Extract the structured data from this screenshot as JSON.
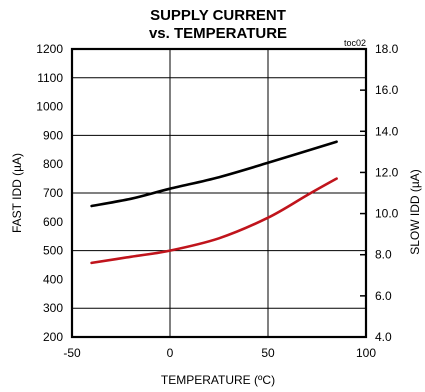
{
  "chart_data": {
    "type": "line",
    "title": "SUPPLY CURRENT",
    "subtitle": "vs. TEMPERATURE",
    "tag": "toc02",
    "xlabel": "TEMPERATURE (ºC)",
    "ylabel": "FAST IDD (µA)",
    "y2label": "SLOW IDD (µA)",
    "xlim": [
      -50,
      100
    ],
    "ylim": [
      200,
      1200
    ],
    "y2lim": [
      4.0,
      18.0
    ],
    "x_ticks": [
      "-50",
      "0",
      "50",
      "100"
    ],
    "y_ticks": [
      "200",
      "300",
      "400",
      "500",
      "600",
      "700",
      "800",
      "900",
      "1000",
      "1100",
      "1200"
    ],
    "y2_ticks": [
      "4.0",
      "6.0",
      "8.0",
      "10.0",
      "12.0",
      "14.0",
      "16.0",
      "18.0"
    ],
    "grid": true,
    "series": [
      {
        "axis": "left",
        "color": "#000000",
        "x": [
          -40,
          -20,
          0,
          25,
          50,
          85
        ],
        "y": [
          655,
          680,
          715,
          755,
          805,
          878
        ]
      },
      {
        "axis": "right",
        "color": "#c0141c",
        "x": [
          -40,
          -20,
          0,
          25,
          50,
          70,
          85
        ],
        "y": [
          7.6,
          7.9,
          8.2,
          8.8,
          9.8,
          10.9,
          11.7
        ]
      }
    ]
  }
}
